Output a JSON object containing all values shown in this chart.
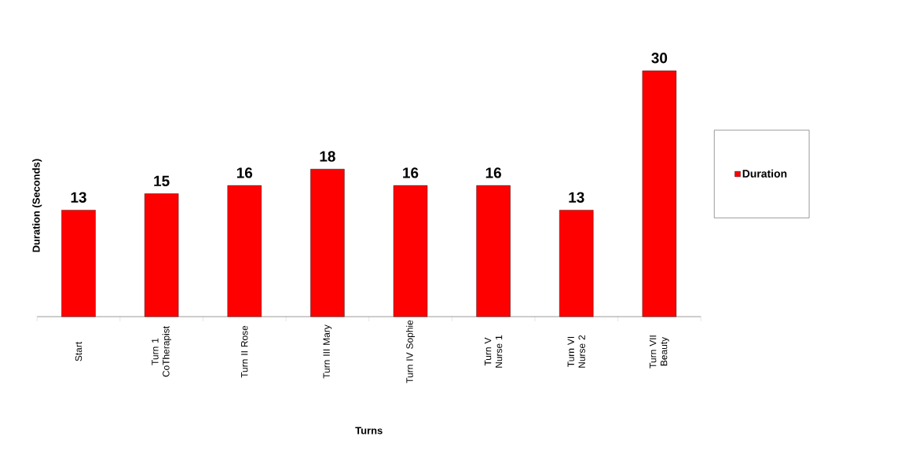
{
  "chart_data": {
    "type": "bar",
    "xlabel": "Turns",
    "ylabel": "Duration (Seconds)",
    "categories": [
      "Start",
      "Turn 1 CoTherapist",
      "Turn II Rose",
      "Turn III Mary",
      "Turn IV Sophie",
      "Turn V Nurse 1",
      "Turn VI Nurse 2",
      "Turn VII Beauty"
    ],
    "series": [
      {
        "name": "Duration",
        "color": "#ff0000",
        "values": [
          13,
          15,
          16,
          18,
          16,
          16,
          13,
          30
        ]
      }
    ],
    "data_labels": true,
    "legend": "right"
  }
}
